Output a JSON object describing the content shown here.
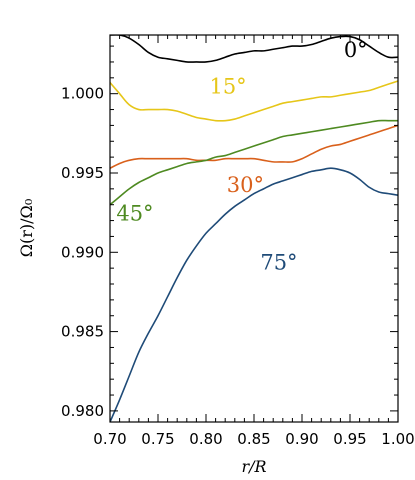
{
  "chart_data": {
    "type": "line",
    "title": "",
    "xlabel": "r/R",
    "ylabel": "Ω(r)/Ω₀",
    "xlim": [
      0.7,
      1.0
    ],
    "ylim": [
      0.9793,
      1.0037
    ],
    "xticks": [
      0.7,
      0.75,
      0.8,
      0.85,
      0.9,
      0.95,
      1.0
    ],
    "xtick_labels": [
      "0.70",
      "0.75",
      "0.80",
      "0.85",
      "0.90",
      "0.95",
      "1.00"
    ],
    "yticks": [
      0.98,
      0.985,
      0.99,
      0.995,
      1.0
    ],
    "ytick_labels": [
      "0.980",
      "0.985",
      "0.990",
      "0.995",
      "1.000"
    ],
    "grid": false,
    "legend": "none",
    "series": [
      {
        "name": "0°",
        "color": "#000000",
        "label_pos": [
          0.956,
          1.0023
        ],
        "x": [
          0.7,
          0.71,
          0.72,
          0.73,
          0.74,
          0.75,
          0.76,
          0.77,
          0.78,
          0.79,
          0.8,
          0.81,
          0.82,
          0.83,
          0.84,
          0.85,
          0.86,
          0.87,
          0.88,
          0.89,
          0.9,
          0.91,
          0.92,
          0.93,
          0.94,
          0.95,
          0.96,
          0.97,
          0.98,
          0.99,
          1.0
        ],
        "y": [
          1.0037,
          1.0037,
          1.0035,
          1.0031,
          1.0026,
          1.0023,
          1.0022,
          1.0021,
          1.002,
          1.002,
          1.002,
          1.0021,
          1.0023,
          1.0025,
          1.0026,
          1.0027,
          1.0027,
          1.0028,
          1.0029,
          1.003,
          1.003,
          1.0031,
          1.0033,
          1.0035,
          1.0036,
          1.0036,
          1.0034,
          1.003,
          1.0026,
          1.0023,
          1.0023
        ]
      },
      {
        "name": "15°",
        "color": "#e6c619",
        "label_pos": [
          0.823,
          1.0
        ],
        "x": [
          0.7,
          0.71,
          0.72,
          0.73,
          0.74,
          0.75,
          0.76,
          0.77,
          0.78,
          0.79,
          0.8,
          0.81,
          0.82,
          0.83,
          0.84,
          0.85,
          0.86,
          0.87,
          0.88,
          0.89,
          0.9,
          0.91,
          0.92,
          0.93,
          0.94,
          0.95,
          0.96,
          0.97,
          0.98,
          0.99,
          1.0
        ],
        "y": [
          1.0007,
          1.0,
          0.9993,
          0.999,
          0.999,
          0.999,
          0.999,
          0.9989,
          0.9987,
          0.9985,
          0.9984,
          0.9983,
          0.9983,
          0.9984,
          0.9986,
          0.9988,
          0.999,
          0.9992,
          0.9994,
          0.9995,
          0.9996,
          0.9997,
          0.9998,
          0.9998,
          0.9999,
          1.0,
          1.0001,
          1.0002,
          1.0004,
          1.0006,
          1.0008
        ]
      },
      {
        "name": "30°",
        "color": "#d9601b",
        "label_pos": [
          0.841,
          0.9938
        ],
        "x": [
          0.7,
          0.71,
          0.72,
          0.73,
          0.74,
          0.75,
          0.76,
          0.77,
          0.78,
          0.79,
          0.8,
          0.81,
          0.82,
          0.83,
          0.84,
          0.85,
          0.86,
          0.87,
          0.88,
          0.89,
          0.9,
          0.91,
          0.92,
          0.93,
          0.94,
          0.95,
          0.96,
          0.97,
          0.98,
          0.99,
          1.0
        ],
        "y": [
          0.9953,
          0.9956,
          0.9958,
          0.9959,
          0.9959,
          0.9959,
          0.9959,
          0.9959,
          0.9959,
          0.9958,
          0.9958,
          0.9958,
          0.9959,
          0.9959,
          0.9959,
          0.9959,
          0.9958,
          0.9957,
          0.9957,
          0.9957,
          0.9959,
          0.9962,
          0.9965,
          0.9967,
          0.9968,
          0.997,
          0.9972,
          0.9974,
          0.9976,
          0.9978,
          0.998
        ]
      },
      {
        "name": "45°",
        "color": "#4e8a21",
        "label_pos": [
          0.726,
          0.992
        ],
        "x": [
          0.7,
          0.71,
          0.72,
          0.73,
          0.74,
          0.75,
          0.76,
          0.77,
          0.78,
          0.79,
          0.8,
          0.81,
          0.82,
          0.83,
          0.84,
          0.85,
          0.86,
          0.87,
          0.88,
          0.89,
          0.9,
          0.91,
          0.92,
          0.93,
          0.94,
          0.95,
          0.96,
          0.97,
          0.98,
          0.99,
          1.0
        ],
        "y": [
          0.993,
          0.9935,
          0.994,
          0.9944,
          0.9947,
          0.995,
          0.9952,
          0.9954,
          0.9956,
          0.9957,
          0.9958,
          0.996,
          0.9961,
          0.9963,
          0.9965,
          0.9967,
          0.9969,
          0.9971,
          0.9973,
          0.9974,
          0.9975,
          0.9976,
          0.9977,
          0.9978,
          0.9979,
          0.998,
          0.9981,
          0.9982,
          0.9983,
          0.9983,
          0.9983
        ]
      },
      {
        "name": "75°",
        "color": "#1f4b78",
        "label_pos": [
          0.876,
          0.9889
        ],
        "x": [
          0.7,
          0.71,
          0.72,
          0.73,
          0.74,
          0.75,
          0.76,
          0.77,
          0.78,
          0.79,
          0.8,
          0.81,
          0.82,
          0.83,
          0.84,
          0.85,
          0.86,
          0.87,
          0.88,
          0.89,
          0.9,
          0.91,
          0.92,
          0.93,
          0.94,
          0.95,
          0.96,
          0.97,
          0.98,
          0.99,
          1.0
        ],
        "y": [
          0.9793,
          0.9807,
          0.9822,
          0.9837,
          0.9849,
          0.986,
          0.9872,
          0.9884,
          0.9895,
          0.9904,
          0.9912,
          0.9918,
          0.9924,
          0.9929,
          0.9933,
          0.9937,
          0.994,
          0.9943,
          0.9945,
          0.9947,
          0.9949,
          0.9951,
          0.9952,
          0.9953,
          0.9952,
          0.995,
          0.9946,
          0.9941,
          0.9938,
          0.9937,
          0.9936
        ]
      }
    ]
  }
}
